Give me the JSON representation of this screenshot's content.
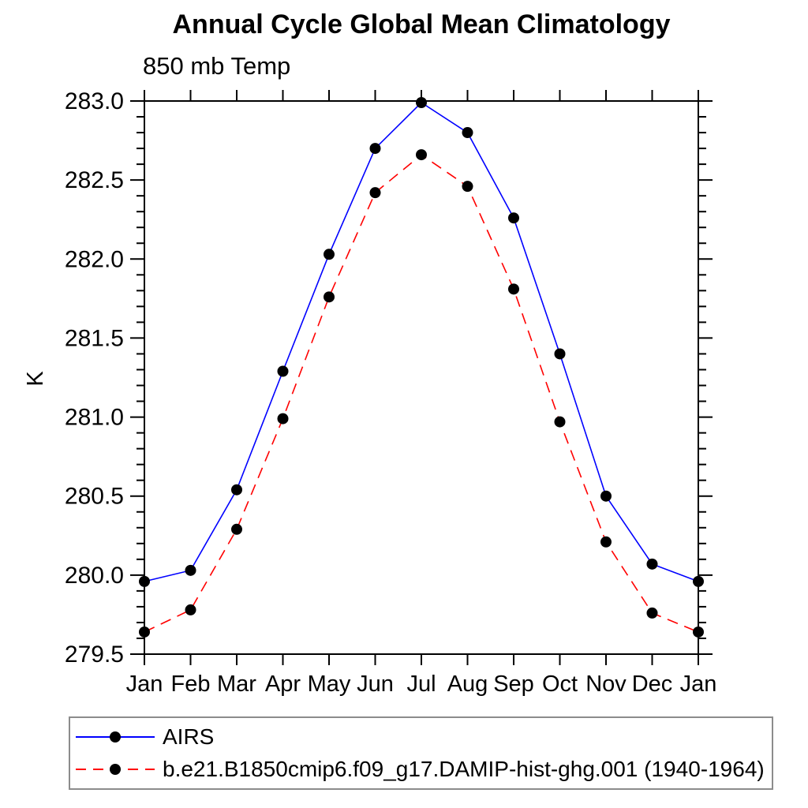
{
  "title": "Annual Cycle Global Mean Climatology",
  "subtitle": "850 mb Temp",
  "ylabel": "K",
  "chart_data": {
    "type": "line",
    "categories": [
      "Jan",
      "Feb",
      "Mar",
      "Apr",
      "May",
      "Jun",
      "Jul",
      "Aug",
      "Sep",
      "Oct",
      "Nov",
      "Dec",
      "Jan"
    ],
    "series": [
      {
        "name": "AIRS",
        "color": "#0000ff",
        "line_style": "solid",
        "marker": "circle",
        "marker_color": "#000000",
        "values": [
          279.96,
          280.03,
          280.54,
          281.29,
          282.03,
          282.7,
          282.99,
          282.8,
          282.26,
          281.4,
          280.5,
          280.07,
          279.96
        ]
      },
      {
        "name": "b.e21.B1850cmip6.f09_g17.DAMIP-hist-ghg.001 (1940-1964)",
        "color": "#ff0000",
        "line_style": "dashed",
        "marker": "circle",
        "marker_color": "#000000",
        "values": [
          279.64,
          279.78,
          280.29,
          280.99,
          281.76,
          282.42,
          282.66,
          282.46,
          281.81,
          280.97,
          280.21,
          279.76,
          279.64
        ]
      }
    ],
    "ylim": [
      279.5,
      283.0
    ],
    "ytick_labels": [
      "279.5",
      "280.0",
      "280.5",
      "281.0",
      "281.5",
      "282.0",
      "282.5",
      "283.0"
    ],
    "ytick_step": 0.5,
    "yminor_step": 0.1,
    "xlabel": "",
    "ylabel": "K",
    "grid": false,
    "legend_position": "bottom"
  },
  "legend": {
    "entries": [
      {
        "label": "AIRS"
      },
      {
        "label": "b.e21.B1850cmip6.f09_g17.DAMIP-hist-ghg.001 (1940-1964)"
      }
    ]
  },
  "colors": {
    "axis": "#000000",
    "text": "#000000",
    "series1": "#0000ff",
    "series2": "#ff0000",
    "marker": "#000000",
    "legend_border": "#8c8c8c",
    "background": "#ffffff"
  }
}
